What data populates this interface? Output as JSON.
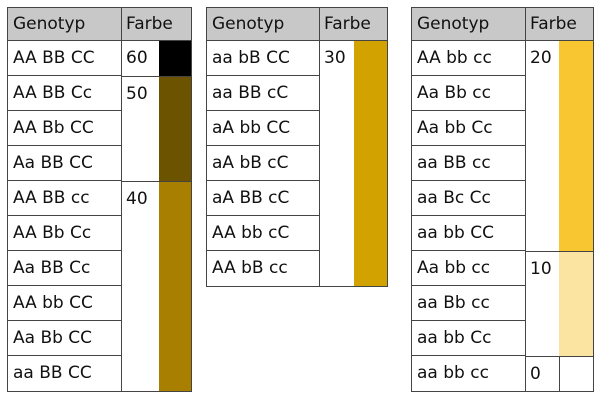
{
  "header": {
    "genotype": "Genotyp",
    "color": "Farbe"
  },
  "tables": [
    {
      "rows": [
        "AA BB CC",
        "AA BB Cc",
        "AA Bb CC",
        "Aa BB CC",
        "AA BB cc",
        "AA Bb Cc",
        "Aa BB Cc",
        "AA bb CC",
        "Aa Bb CC",
        "aa BB CC"
      ],
      "groups": [
        {
          "value": "60",
          "color": "#000000",
          "span": 1
        },
        {
          "value": "50",
          "color": "#6b5300",
          "span": 3
        },
        {
          "value": "40",
          "color": "#a87f00",
          "span": 6
        }
      ]
    },
    {
      "rows": [
        "aa bB CC",
        "aa BB cC",
        "aA bb CC",
        "aA bB cC",
        "aA BB cC",
        "AA bb cC",
        "AA bB cc"
      ],
      "groups": [
        {
          "value": "30",
          "color": "#d2a300",
          "span": 7
        }
      ]
    },
    {
      "rows": [
        "AA bb cc",
        "Aa Bb cc",
        "Aa bb Cc",
        "aa BB cc",
        "aa Bc Cc",
        "aa bb CC",
        "Aa bb cc",
        "aa Bb cc",
        "aa bb Cc",
        "aa bb cc"
      ],
      "groups": [
        {
          "value": "20",
          "color": "#f7c630",
          "span": 6
        },
        {
          "value": "10",
          "color": "#fbe3a1",
          "span": 3
        },
        {
          "value": "0",
          "color": "#ffffff",
          "span": 1
        }
      ]
    }
  ]
}
